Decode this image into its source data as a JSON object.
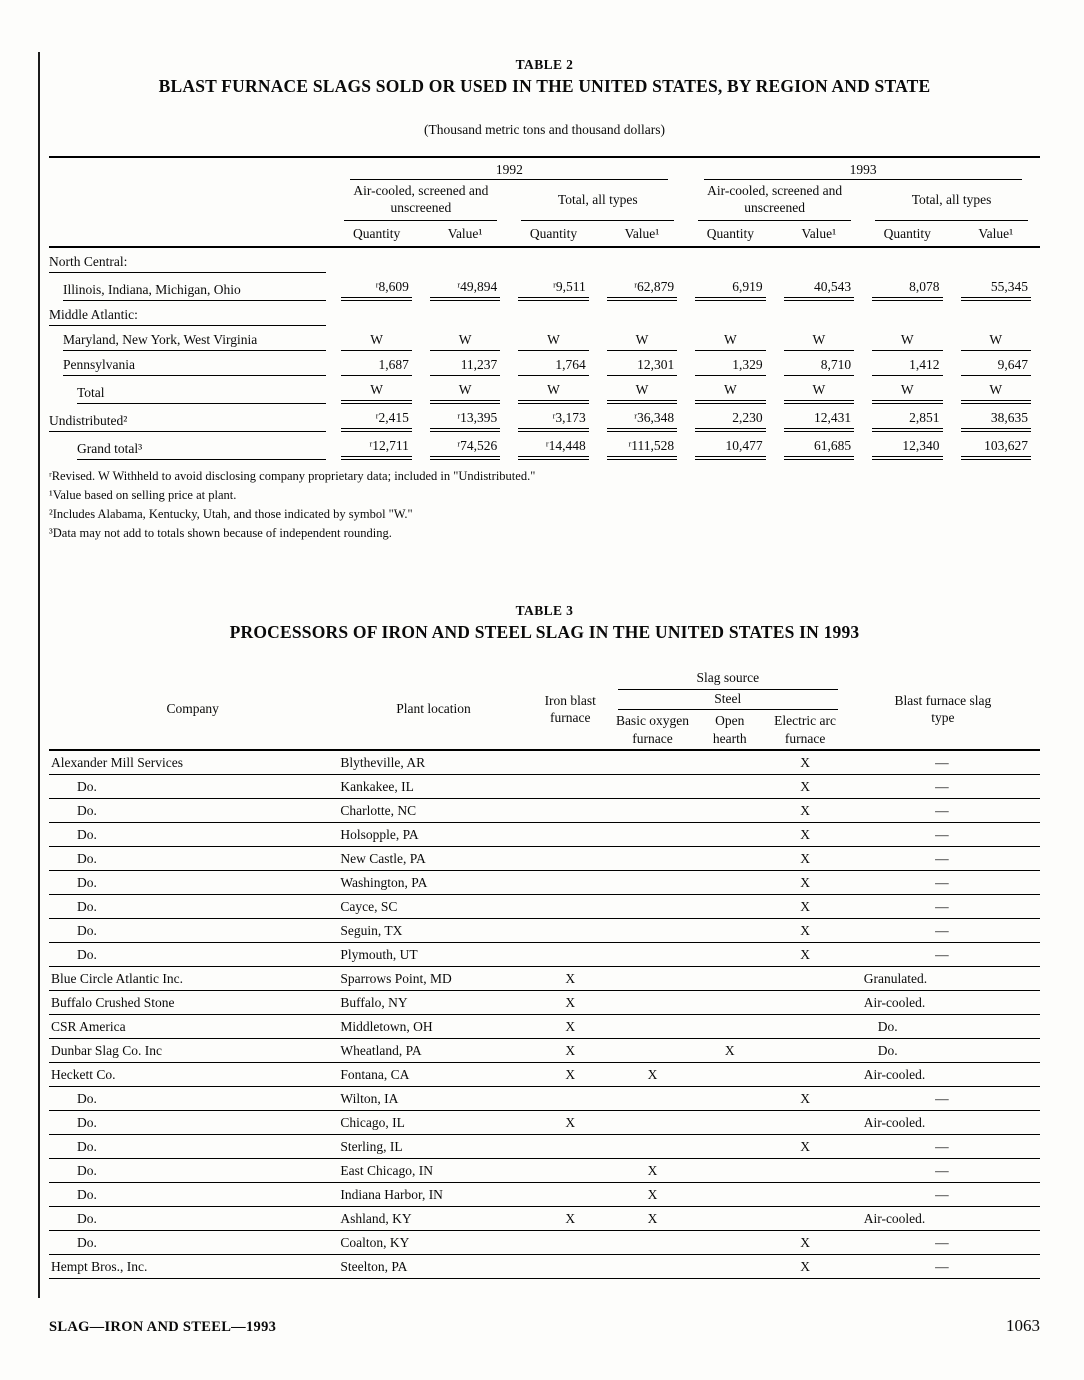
{
  "page": {
    "footer_left": "SLAG—IRON AND STEEL—1993",
    "page_number": "1063"
  },
  "table2": {
    "label": "TABLE 2",
    "title": "BLAST FURNACE SLAGS SOLD OR USED IN THE UNITED STATES, BY REGION AND STATE",
    "subtitle": "(Thousand metric tons and thousand dollars)",
    "year_headers": [
      "1992",
      "1993"
    ],
    "group_headers": [
      "Air-cooled, screened and unscreened",
      "Total, all types"
    ],
    "col_headers": {
      "quantity": "Quantity",
      "value": "Value¹"
    },
    "rows": [
      {
        "label": "North Central:",
        "indent": 0,
        "section": true
      },
      {
        "label": "Illinois, Indiana, Michigan, Ohio",
        "indent": 1,
        "rule": "double",
        "values": [
          "ʳ8,609",
          "ʳ49,894",
          "ʳ9,511",
          "ʳ62,879",
          "6,919",
          "40,543",
          "8,078",
          "55,345"
        ]
      },
      {
        "label": "Middle Atlantic:",
        "indent": 0,
        "section": true
      },
      {
        "label": "Maryland, New York, West Virginia",
        "indent": 1,
        "rule": "single",
        "values": [
          "W",
          "W",
          "W",
          "W",
          "W",
          "W",
          "W",
          "W"
        ]
      },
      {
        "label": "Pennsylvania",
        "indent": 1,
        "rule": "single",
        "values": [
          "1,687",
          "11,237",
          "1,764",
          "12,301",
          "1,329",
          "8,710",
          "1,412",
          "9,647"
        ]
      },
      {
        "label": "Total",
        "indent": 2,
        "rule": "double",
        "values": [
          "W",
          "W",
          "W",
          "W",
          "W",
          "W",
          "W",
          "W"
        ]
      },
      {
        "label": "Undistributed²",
        "indent": 0,
        "rule": "double",
        "values": [
          "ʳ2,415",
          "ʳ13,395",
          "ʳ3,173",
          "ʳ36,348",
          "2,230",
          "12,431",
          "2,851",
          "38,635"
        ]
      },
      {
        "label": "Grand total³",
        "indent": 2,
        "rule": "double",
        "values": [
          "ʳ12,711",
          "ʳ74,526",
          "ʳ14,448",
          "ʳ111,528",
          "10,477",
          "61,685",
          "12,340",
          "103,627"
        ]
      }
    ],
    "footnotes": [
      "ʳRevised.  W Withheld to avoid disclosing company proprietary data; included in \"Undistributed.\"",
      "¹Value based on selling price at plant.",
      "²Includes Alabama, Kentucky, Utah, and those indicated by symbol \"W.\"",
      "³Data may not add to totals shown because of independent rounding."
    ]
  },
  "table3": {
    "label": "TABLE 3",
    "title": "PROCESSORS OF IRON AND STEEL SLAG IN THE UNITED STATES IN 1993",
    "headers": {
      "company": "Company",
      "plant_location": "Plant location",
      "iron_blast_furnace": "Iron blast furnace",
      "slag_source": "Slag source",
      "steel": "Steel",
      "basic_oxygen_furnace": "Basic oxygen furnace",
      "open_hearth": "Open hearth",
      "electric_arc_furnace": "Electric arc furnace",
      "blast_furnace_slag_type": "Blast furnace slag type"
    },
    "rows": [
      [
        "Alexander Mill Services",
        "Blytheville, AR",
        "",
        "",
        "",
        "X",
        "—"
      ],
      [
        "Do.",
        "Kankakee, IL",
        "",
        "",
        "",
        "X",
        "—"
      ],
      [
        "Do.",
        "Charlotte, NC",
        "",
        "",
        "",
        "X",
        "—"
      ],
      [
        "Do.",
        "Holsopple, PA",
        "",
        "",
        "",
        "X",
        "—"
      ],
      [
        "Do.",
        "New Castle, PA",
        "",
        "",
        "",
        "X",
        "—"
      ],
      [
        "Do.",
        "Washington, PA",
        "",
        "",
        "",
        "X",
        "—"
      ],
      [
        "Do.",
        "Cayce, SC",
        "",
        "",
        "",
        "X",
        "—"
      ],
      [
        "Do.",
        "Seguin, TX",
        "",
        "",
        "",
        "X",
        "—"
      ],
      [
        "Do.",
        "Plymouth, UT",
        "",
        "",
        "",
        "X",
        "—"
      ],
      [
        "Blue Circle Atlantic Inc.",
        "Sparrows Point, MD",
        "X",
        "",
        "",
        "",
        "Granulated."
      ],
      [
        "Buffalo Crushed Stone",
        "Buffalo, NY",
        "X",
        "",
        "",
        "",
        "Air-cooled."
      ],
      [
        "CSR America",
        "Middletown, OH",
        "X",
        "",
        "",
        "",
        "Do."
      ],
      [
        "Dunbar Slag Co. Inc",
        "Wheatland, PA",
        "X",
        "",
        "X",
        "",
        "Do."
      ],
      [
        "Heckett Co.",
        "Fontana, CA",
        "X",
        "X",
        "",
        "",
        "Air-cooled."
      ],
      [
        "Do.",
        "Wilton, IA",
        "",
        "",
        "",
        "X",
        "—"
      ],
      [
        "Do.",
        "Chicago, IL",
        "X",
        "",
        "",
        "",
        "Air-cooled."
      ],
      [
        "Do.",
        "Sterling, IL",
        "",
        "",
        "",
        "X",
        "—"
      ],
      [
        "Do.",
        "East Chicago, IN",
        "",
        "X",
        "",
        "",
        "—"
      ],
      [
        "Do.",
        "Indiana Harbor, IN",
        "",
        "X",
        "",
        "",
        "—"
      ],
      [
        "Do.",
        "Ashland, KY",
        "X",
        "X",
        "",
        "",
        "Air-cooled."
      ],
      [
        "Do.",
        "Coalton, KY",
        "",
        "",
        "",
        "X",
        "—"
      ],
      [
        "Hempt Bros., Inc.",
        "Steelton, PA",
        "",
        "",
        "",
        "X",
        "—"
      ]
    ]
  }
}
